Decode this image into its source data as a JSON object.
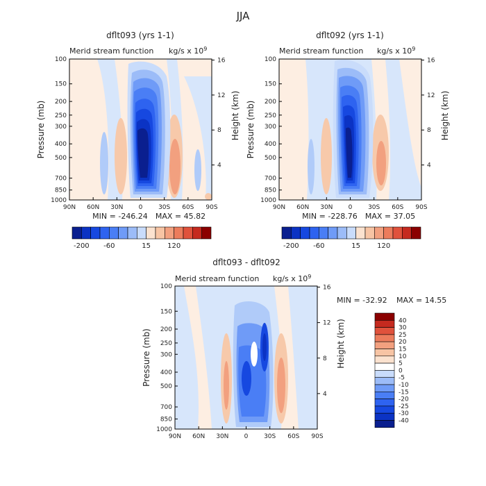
{
  "figure_title": "JJA",
  "colors": {
    "frame": "#000000",
    "text": "#222222",
    "neg_dark": "#0a1f8f",
    "pos_dark": "#8b0000"
  },
  "chart_data": [
    {
      "type": "contour",
      "title": "dflt093 (yrs 1-1)",
      "field_label": "Merid stream function",
      "units_label": "kg/s x 10",
      "units_exp": "9",
      "xlabel": "",
      "ylabel": "Pressure (mb)",
      "ylabel_right": "Height (km)",
      "x_ticks": [
        "90N",
        "60N",
        "30N",
        "0",
        "30S",
        "60S",
        "90S"
      ],
      "x_values": [
        90,
        60,
        30,
        0,
        -30,
        -60,
        -90
      ],
      "y_ticks": [
        "100",
        "150",
        "200",
        "250",
        "300",
        "400",
        "500",
        "700",
        "850",
        "1000"
      ],
      "y_values": [
        100,
        150,
        200,
        250,
        300,
        400,
        500,
        700,
        850,
        1000
      ],
      "height_ticks": [
        "16",
        "12",
        "8",
        "4"
      ],
      "min_text": "MIN = -246.24",
      "max_text": "MAX =  45.82",
      "min": -246.24,
      "max": 45.82
    },
    {
      "type": "contour",
      "title": "dflt092 (yrs 1-1)",
      "field_label": "Merid stream function",
      "units_label": "kg/s x 10",
      "units_exp": "9",
      "xlabel": "",
      "ylabel": "Pressure (mb)",
      "ylabel_right": "Height (km)",
      "x_ticks": [
        "90N",
        "60N",
        "30N",
        "0",
        "30S",
        "60S",
        "90S"
      ],
      "x_values": [
        90,
        60,
        30,
        0,
        -30,
        -60,
        -90
      ],
      "y_ticks": [
        "100",
        "150",
        "200",
        "250",
        "300",
        "400",
        "500",
        "700",
        "850",
        "1000"
      ],
      "y_values": [
        100,
        150,
        200,
        250,
        300,
        400,
        500,
        700,
        850,
        1000
      ],
      "height_ticks": [
        "16",
        "12",
        "8",
        "4"
      ],
      "min_text": "MIN = -228.76",
      "max_text": "MAX =  37.05",
      "min": -228.76,
      "max": 37.05
    },
    {
      "type": "contour",
      "title": "dflt093 - dflt092",
      "field_label": "Merid stream function",
      "units_label": "kg/s x 10",
      "units_exp": "9",
      "xlabel": "",
      "ylabel": "Pressure (mb)",
      "ylabel_right": "Height (km)",
      "x_ticks": [
        "90N",
        "60N",
        "30N",
        "0",
        "30S",
        "60S",
        "90S"
      ],
      "x_values": [
        90,
        60,
        30,
        0,
        -30,
        -60,
        -90
      ],
      "y_ticks": [
        "100",
        "150",
        "200",
        "250",
        "300",
        "400",
        "500",
        "700",
        "850",
        "1000"
      ],
      "y_values": [
        100,
        150,
        200,
        250,
        300,
        400,
        500,
        700,
        850,
        1000
      ],
      "height_ticks": [
        "16",
        "12",
        "8",
        "4"
      ],
      "min_text": "MIN = -32.92",
      "max_text": "MAX =  14.55",
      "min": -32.92,
      "max": 14.55
    }
  ],
  "colorbars": {
    "horizontal": {
      "labels": [
        "-200",
        "-60",
        "15",
        "120"
      ],
      "n_boxes": 15,
      "colors": [
        "#0a1f8f",
        "#0b33c4",
        "#1648e0",
        "#2e63f0",
        "#4a7ef5",
        "#6f9bf7",
        "#9cbcf8",
        "#c9dcfb",
        "#fbe2cf",
        "#f7c4a4",
        "#f2a07f",
        "#ec7c5c",
        "#e0523c",
        "#c52a1f",
        "#8b0000"
      ]
    },
    "vertical": {
      "labels": [
        "40",
        "30",
        "25",
        "20",
        "15",
        "10",
        "5",
        "0",
        "-5",
        "-10",
        "-15",
        "-20",
        "-25",
        "-30",
        "-40"
      ],
      "colors": [
        "#8b0000",
        "#c52a1f",
        "#e0523c",
        "#ec7c5c",
        "#f2a07f",
        "#f7c4a4",
        "#fbe2cf",
        "#ffffff",
        "#c9dcfb",
        "#9cbcf8",
        "#6f9bf7",
        "#4a7ef5",
        "#2e63f0",
        "#1648e0",
        "#0b33c4",
        "#0a1f8f"
      ]
    }
  }
}
